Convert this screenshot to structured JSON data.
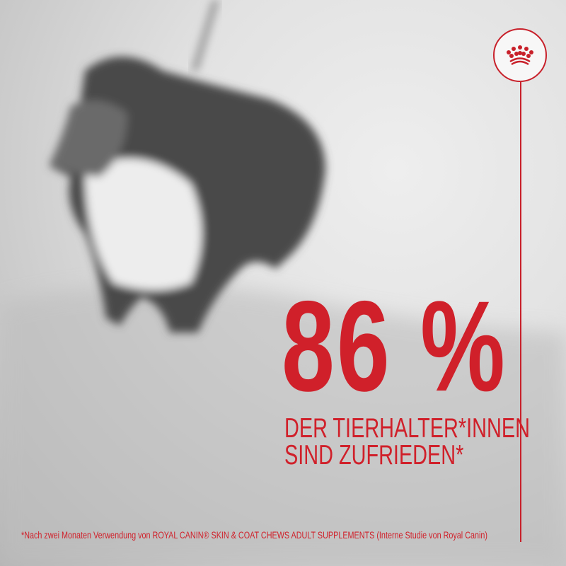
{
  "brand": {
    "name": "ROYAL CANIN",
    "logo_icon": "crown-icon",
    "accent_color": "#d0202a"
  },
  "headline": {
    "stat": "86 %",
    "line1": "DER TIERHALTER*INNEN",
    "line2": "SIND ZUFRIEDEN*"
  },
  "footnote": "*Nach zwei Monaten Verwendung von ROYAL CANIN® SKIN & COAT CHEWS ADULT SUPPLEMENTS (Interne Studie von Royal Canin)"
}
